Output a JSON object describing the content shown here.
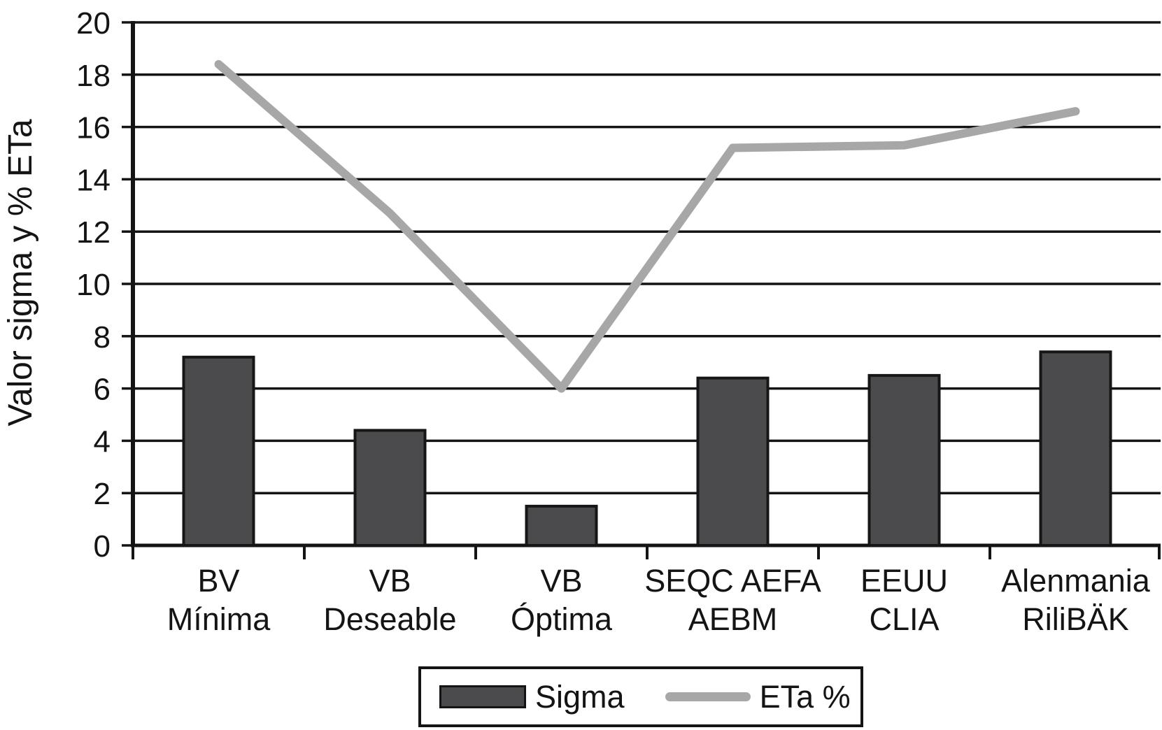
{
  "colors": {
    "background": "#ffffff",
    "bar_fill": "#4b4b4d",
    "bar_border": "#161617",
    "line": "#a7a7a7",
    "axis": "#141414",
    "text": "#141414"
  },
  "y_axis": {
    "title": "Valor sigma y % ETa",
    "min": 0,
    "max": 20,
    "step": 2,
    "tick_labels": [
      "0",
      "2",
      "4",
      "6",
      "8",
      "10",
      "12",
      "14",
      "16",
      "18",
      "20"
    ]
  },
  "legend": {
    "items": [
      {
        "label": "Sigma",
        "swatch": "bar"
      },
      {
        "label": "ETa %",
        "swatch": "line"
      }
    ]
  },
  "chart_data": {
    "type": "bar",
    "subtype": "combo-bar-line",
    "title": "",
    "xlabel": "",
    "ylabel": "Valor sigma y % ETa",
    "ylim": [
      0,
      20
    ],
    "ytick_step": 2,
    "grid": "horizontal",
    "legend_position": "bottom",
    "categories": [
      "BV Mínima",
      "VB Deseable",
      "VB Óptima",
      "SEQC AEFA AEBM",
      "EEUU CLIA",
      "Alenmania RiliBÄK"
    ],
    "category_lines": [
      [
        "BV",
        "Mínima"
      ],
      [
        "VB",
        "Deseable"
      ],
      [
        "VB",
        "Óptima"
      ],
      [
        "SEQC AEFA",
        "AEBM"
      ],
      [
        "EEUU",
        "CLIA"
      ],
      [
        "Alenmania",
        "RiliBÄK"
      ]
    ],
    "series": [
      {
        "name": "Sigma",
        "type": "bar",
        "values": [
          7.2,
          4.4,
          1.5,
          6.4,
          6.5,
          7.4
        ]
      },
      {
        "name": "ETa %",
        "type": "line",
        "values": [
          18.4,
          12.7,
          6.0,
          15.2,
          15.3,
          16.6
        ]
      }
    ]
  }
}
